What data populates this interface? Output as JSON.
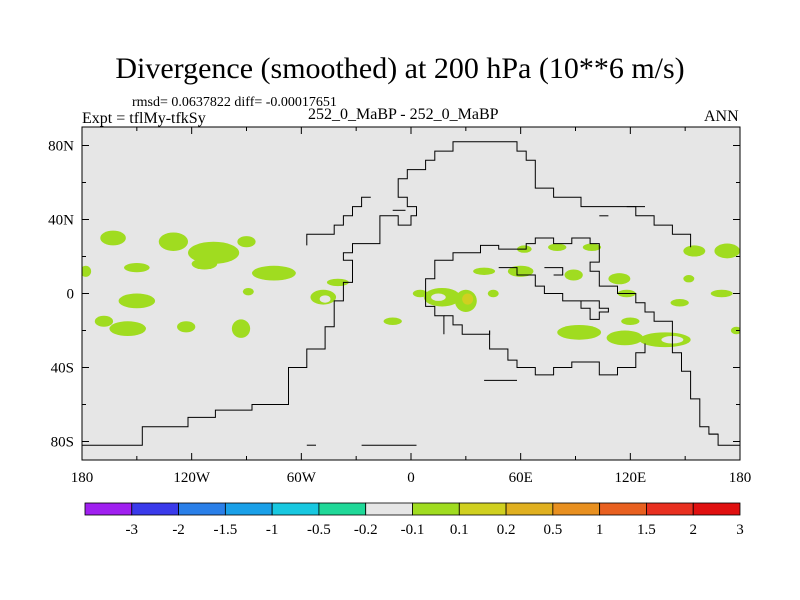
{
  "header": {
    "title": "Divergence (smoothed) at 200 hPa (10**6 m/s)",
    "stats": "rmsd= 0.0637822 diff= -0.00017651",
    "expt": "Expt = tflMy-tfkSy",
    "center_label": "252_0_MaBP - 252_0_MaBP",
    "season": "ANN"
  },
  "chart_data": {
    "type": "heatmap",
    "title": "Divergence (smoothed) at 200 hPa (10**6 m/s)",
    "xlabel": "",
    "ylabel": "",
    "xlim": [
      -180,
      180
    ],
    "ylim": [
      -90,
      90
    ],
    "x_ticks": [
      -180,
      -120,
      -60,
      0,
      60,
      120,
      180
    ],
    "x_tick_labels": [
      "180",
      "120W",
      "60W",
      "0",
      "60E",
      "120E",
      "180"
    ],
    "y_ticks": [
      80,
      40,
      0,
      -40,
      -80
    ],
    "y_tick_labels": [
      "80N",
      "40N",
      "0",
      "40S",
      "80S"
    ],
    "background_value_range": [
      -0.1,
      0.1
    ],
    "background_color": "#e6e6e6",
    "colorbar": {
      "levels": [
        "-3",
        "-2",
        "-1.5",
        "-1",
        "-0.5",
        "-0.2",
        "-0.1",
        "0.1",
        "0.2",
        "0.5",
        "1",
        "1.5",
        "2",
        "3"
      ],
      "colors": [
        "#a020f0",
        "#3a3aea",
        "#2a7fe8",
        "#1aa0e8",
        "#18c8e0",
        "#20d898",
        "#e6e6e6",
        "#a0dc20",
        "#d0d020",
        "#e0b020",
        "#e89020",
        "#e86020",
        "#e83020",
        "#e01010"
      ]
    },
    "regions": [
      {
        "lon": -163,
        "lat": 30,
        "rlon": 7,
        "rlat": 4,
        "level": "0.1"
      },
      {
        "lon": -130,
        "lat": 28,
        "rlon": 8,
        "rlat": 5,
        "level": "0.1"
      },
      {
        "lon": -108,
        "lat": 22,
        "rlon": 14,
        "rlat": 6,
        "level": "0.1"
      },
      {
        "lon": -90,
        "lat": 28,
        "rlon": 5,
        "rlat": 3,
        "level": "0.1"
      },
      {
        "lon": -178,
        "lat": 12,
        "rlon": 3,
        "rlat": 3,
        "level": "0.1"
      },
      {
        "lon": -150,
        "lat": 14,
        "rlon": 7,
        "rlat": 2.5,
        "level": "0.1"
      },
      {
        "lon": -113,
        "lat": 16,
        "rlon": 7,
        "rlat": 3,
        "level": "0.1"
      },
      {
        "lon": -75,
        "lat": 11,
        "rlon": 12,
        "rlat": 4,
        "level": "0.1"
      },
      {
        "lon": -40,
        "lat": 6,
        "rlon": 6,
        "rlat": 2,
        "level": "0.1"
      },
      {
        "lon": -89,
        "lat": 1,
        "rlon": 3,
        "rlat": 2,
        "level": "0.1"
      },
      {
        "lon": -150,
        "lat": -4,
        "rlon": 10,
        "rlat": 4,
        "level": "0.1"
      },
      {
        "lon": -168,
        "lat": -15,
        "rlon": 5,
        "rlat": 3,
        "level": "0.1"
      },
      {
        "lon": -155,
        "lat": -19,
        "rlon": 10,
        "rlat": 4,
        "level": "0.1"
      },
      {
        "lon": -123,
        "lat": -18,
        "rlon": 5,
        "rlat": 3,
        "level": "0.1"
      },
      {
        "lon": -93,
        "lat": -19,
        "rlon": 5,
        "rlat": 5,
        "level": "0.1"
      },
      {
        "lon": -48,
        "lat": -2,
        "rlon": 7,
        "rlat": 4,
        "level": "0.1"
      },
      {
        "lon": -47,
        "lat": -3,
        "rlon": 3,
        "rlat": 2,
        "level": "-0.1"
      },
      {
        "lon": -10,
        "lat": -15,
        "rlon": 5,
        "rlat": 2,
        "level": "0.1"
      },
      {
        "lon": 5,
        "lat": 0,
        "rlon": 4,
        "rlat": 2,
        "level": "0.1"
      },
      {
        "lon": 17,
        "lat": -2,
        "rlon": 10,
        "rlat": 5,
        "level": "0.1"
      },
      {
        "lon": 15,
        "lat": -2,
        "rlon": 4,
        "rlat": 2,
        "level": "-0.1"
      },
      {
        "lon": 30,
        "lat": -4,
        "rlon": 6,
        "rlat": 6,
        "level": "0.1"
      },
      {
        "lon": 31,
        "lat": -3,
        "rlon": 3,
        "rlat": 3,
        "level": "0.2"
      },
      {
        "lon": 36,
        "lat": -24,
        "rlon": 3,
        "rlat": 2,
        "level": "-0.1"
      },
      {
        "lon": 45,
        "lat": 0,
        "rlon": 3,
        "rlat": 2,
        "level": "0.1"
      },
      {
        "lon": 40,
        "lat": 12,
        "rlon": 6,
        "rlat": 2,
        "level": "0.1"
      },
      {
        "lon": 60,
        "lat": 12,
        "rlon": 7,
        "rlat": 3,
        "level": "0.1"
      },
      {
        "lon": 62,
        "lat": 24,
        "rlon": 4,
        "rlat": 2,
        "level": "0.1"
      },
      {
        "lon": 80,
        "lat": 25,
        "rlon": 5,
        "rlat": 2,
        "level": "0.1"
      },
      {
        "lon": 99,
        "lat": 25,
        "rlon": 5,
        "rlat": 2,
        "level": "0.1"
      },
      {
        "lon": 89,
        "lat": 10,
        "rlon": 5,
        "rlat": 3,
        "level": "0.1"
      },
      {
        "lon": 114,
        "lat": 8,
        "rlon": 6,
        "rlat": 3,
        "level": "0.1"
      },
      {
        "lon": 118,
        "lat": 0,
        "rlon": 5,
        "rlat": 2,
        "level": "0.1"
      },
      {
        "lon": 147,
        "lat": -5,
        "rlon": 5,
        "rlat": 2,
        "level": "0.1"
      },
      {
        "lon": 155,
        "lat": 23,
        "rlon": 6,
        "rlat": 3,
        "level": "0.1"
      },
      {
        "lon": 173,
        "lat": 23,
        "rlon": 7,
        "rlat": 4,
        "level": "0.1"
      },
      {
        "lon": 152,
        "lat": 8,
        "rlon": 3,
        "rlat": 2,
        "level": "0.1"
      },
      {
        "lon": 170,
        "lat": 0,
        "rlon": 6,
        "rlat": 2,
        "level": "0.1"
      },
      {
        "lon": 92,
        "lat": -21,
        "rlon": 12,
        "rlat": 4,
        "level": "0.1"
      },
      {
        "lon": 117,
        "lat": -24,
        "rlon": 10,
        "rlat": 4,
        "level": "0.1"
      },
      {
        "lon": 139,
        "lat": -25,
        "rlon": 14,
        "rlat": 4,
        "level": "0.1"
      },
      {
        "lon": 143,
        "lat": -25,
        "rlon": 6,
        "rlat": 2,
        "level": "-0.1"
      },
      {
        "lon": 120,
        "lat": -15,
        "rlon": 5,
        "rlat": 2,
        "level": "0.1"
      },
      {
        "lon": 178,
        "lat": -20,
        "rlon": 3,
        "rlat": 2,
        "level": "0.1"
      },
      {
        "lon": 148,
        "lat": 42,
        "rlon": 1,
        "rlat": 1,
        "level": "-0.1"
      }
    ],
    "boundaries": [
      [
        [
          -180,
          -82
        ],
        [
          -147,
          -82
        ],
        [
          -147,
          -72
        ],
        [
          -122,
          -72
        ],
        [
          -122,
          -67
        ],
        [
          -107,
          -67
        ],
        [
          -107,
          -63
        ],
        [
          -87,
          -63
        ],
        [
          -87,
          -60
        ],
        [
          -67,
          -60
        ],
        [
          -67,
          -40
        ],
        [
          -57,
          -40
        ],
        [
          -57,
          -30
        ],
        [
          -47,
          -30
        ],
        [
          -47,
          -18
        ],
        [
          -42,
          -18
        ],
        [
          -42,
          -4
        ],
        [
          -37,
          -4
        ],
        [
          -37,
          6
        ],
        [
          -32,
          6
        ],
        [
          -32,
          18
        ],
        [
          -37,
          18
        ],
        [
          -37,
          22
        ],
        [
          -32,
          22
        ],
        [
          -32,
          27
        ],
        [
          -17,
          27
        ],
        [
          -17,
          42
        ],
        [
          -7,
          42
        ],
        [
          -7,
          37
        ],
        [
          0,
          37
        ],
        [
          0,
          42
        ],
        [
          3,
          42
        ],
        [
          3,
          47
        ],
        [
          -2,
          47
        ],
        [
          -2,
          52
        ],
        [
          -7,
          52
        ],
        [
          -7,
          62
        ],
        [
          -2,
          62
        ],
        [
          -2,
          67
        ],
        [
          8,
          67
        ],
        [
          8,
          72
        ],
        [
          13,
          72
        ],
        [
          13,
          77
        ],
        [
          23,
          77
        ],
        [
          23,
          82
        ],
        [
          58,
          82
        ],
        [
          58,
          77
        ],
        [
          63,
          77
        ],
        [
          63,
          72
        ],
        [
          68,
          72
        ],
        [
          68,
          57
        ],
        [
          78,
          57
        ],
        [
          78,
          52
        ],
        [
          93,
          52
        ],
        [
          93,
          47
        ],
        [
          123,
          47
        ],
        [
          123,
          42
        ],
        [
          133,
          42
        ],
        [
          133,
          37
        ],
        [
          143,
          37
        ],
        [
          143,
          32
        ],
        [
          153,
          32
        ],
        [
          153,
          25
        ]
      ],
      [
        [
          18,
          -22
        ],
        [
          18,
          -12
        ],
        [
          13,
          -12
        ],
        [
          13,
          -7
        ],
        [
          8,
          -7
        ],
        [
          8,
          8
        ],
        [
          13,
          8
        ],
        [
          13,
          18
        ],
        [
          23,
          18
        ],
        [
          23,
          22
        ],
        [
          38,
          22
        ],
        [
          38,
          26
        ],
        [
          48,
          26
        ],
        [
          48,
          24
        ],
        [
          63,
          24
        ],
        [
          63,
          27
        ],
        [
          68,
          27
        ],
        [
          68,
          30
        ],
        [
          78,
          30
        ],
        [
          78,
          27
        ],
        [
          88,
          27
        ],
        [
          88,
          30
        ],
        [
          98,
          30
        ],
        [
          98,
          27
        ],
        [
          103,
          27
        ],
        [
          103,
          17
        ],
        [
          98,
          17
        ],
        [
          98,
          12
        ],
        [
          103,
          12
        ],
        [
          103,
          4
        ],
        [
          113,
          4
        ],
        [
          113,
          0
        ],
        [
          123,
          0
        ],
        [
          123,
          -5
        ],
        [
          128,
          -5
        ],
        [
          128,
          -10
        ],
        [
          133,
          -10
        ],
        [
          133,
          -15
        ],
        [
          143,
          -15
        ],
        [
          143,
          -32
        ],
        [
          148,
          -32
        ],
        [
          148,
          -42
        ],
        [
          153,
          -42
        ],
        [
          153,
          -57
        ],
        [
          158,
          -57
        ],
        [
          158,
          -72
        ],
        [
          163,
          -72
        ],
        [
          163,
          -76
        ],
        [
          168,
          -76
        ],
        [
          168,
          -82
        ],
        [
          180,
          -82
        ]
      ],
      [
        [
          48,
          14
        ],
        [
          58,
          14
        ],
        [
          58,
          10
        ],
        [
          68,
          10
        ],
        [
          68,
          4
        ],
        [
          73,
          4
        ],
        [
          73,
          0
        ],
        [
          83,
          0
        ],
        [
          83,
          -4
        ],
        [
          93,
          -4
        ],
        [
          93,
          -8
        ],
        [
          98,
          -8
        ],
        [
          98,
          -14
        ],
        [
          103,
          -14
        ],
        [
          103,
          -10
        ],
        [
          108,
          -10
        ],
        [
          108,
          -8
        ],
        [
          103,
          -8
        ],
        [
          103,
          -4
        ],
        [
          93,
          -4
        ]
      ],
      [
        [
          43,
          -20
        ],
        [
          43,
          -30
        ],
        [
          53,
          -30
        ],
        [
          53,
          -36
        ],
        [
          58,
          -36
        ],
        [
          58,
          -40
        ],
        [
          68,
          -40
        ],
        [
          68,
          -44
        ],
        [
          78,
          -44
        ],
        [
          78,
          -40
        ],
        [
          88,
          -40
        ],
        [
          88,
          -37
        ],
        [
          103,
          -37
        ],
        [
          103,
          -44
        ],
        [
          113,
          -44
        ],
        [
          113,
          -40
        ],
        [
          123,
          -40
        ],
        [
          123,
          -32
        ],
        [
          128,
          -32
        ],
        [
          128,
          -27
        ]
      ],
      [
        [
          18,
          -12
        ],
        [
          23,
          -12
        ],
        [
          23,
          -17
        ],
        [
          28,
          -17
        ],
        [
          28,
          -22
        ],
        [
          43,
          -22
        ],
        [
          43,
          -20
        ]
      ],
      [
        [
          -52,
          32
        ],
        [
          -42,
          32
        ],
        [
          -42,
          37
        ],
        [
          -37,
          37
        ],
        [
          -37,
          42
        ],
        [
          -32,
          42
        ],
        [
          -32,
          47
        ],
        [
          -27,
          47
        ],
        [
          -27,
          52
        ],
        [
          -22,
          52
        ]
      ],
      [
        [
          -52,
          32
        ],
        [
          -57,
          32
        ],
        [
          -57,
          26
        ]
      ],
      [
        [
          -10,
          45
        ],
        [
          -3,
          45
        ]
      ],
      [
        [
          103,
          42
        ],
        [
          108,
          42
        ]
      ],
      [
        [
          118,
          47
        ],
        [
          128,
          47
        ]
      ],
      [
        [
          73,
          14
        ],
        [
          83,
          14
        ],
        [
          83,
          10
        ],
        [
          78,
          10
        ]
      ],
      [
        [
          -57,
          -82
        ],
        [
          -52,
          -82
        ]
      ],
      [
        [
          -27,
          -82
        ],
        [
          3,
          -82
        ]
      ],
      [
        [
          163,
          -76
        ],
        [
          168,
          -76
        ]
      ],
      [
        [
          40,
          -47
        ],
        [
          58,
          -47
        ]
      ]
    ]
  }
}
